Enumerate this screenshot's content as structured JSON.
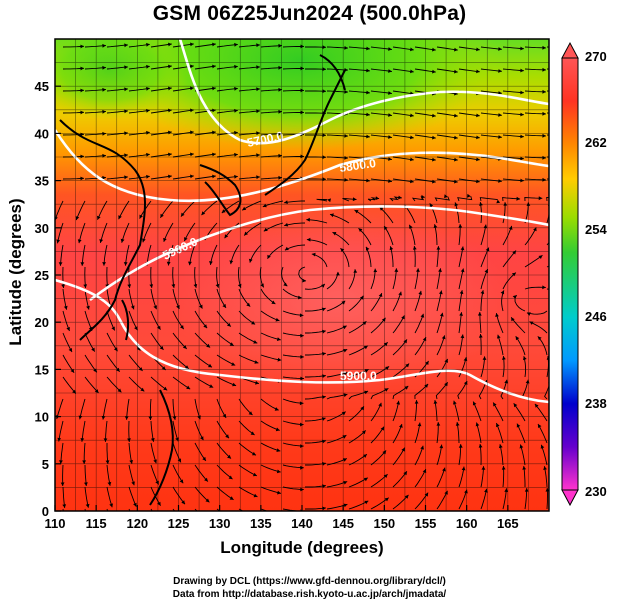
{
  "title": "GSM 06Z25Jun2024 (500.0hPa)",
  "xlabel": "Longitude (degrees)",
  "ylabel": "Latitude  (degrees)",
  "x_ticks": [
    "110",
    "115",
    "120",
    "125",
    "130",
    "135",
    "140",
    "145",
    "150",
    "155",
    "160",
    "165"
  ],
  "y_ticks": [
    "0",
    "5",
    "10",
    "15",
    "20",
    "25",
    "30",
    "35",
    "40",
    "45"
  ],
  "colorbar": {
    "min": 230,
    "max": 270,
    "labels": [
      "270",
      "262",
      "254",
      "246",
      "238",
      "230"
    ],
    "stops": [
      "#ff33cc",
      "#6600cc",
      "#0000cc",
      "#0099ff",
      "#00cccc",
      "#33cc33",
      "#99dd00",
      "#ffcc00",
      "#ff8800",
      "#ff3322",
      "#ff5555"
    ]
  },
  "contours": [
    {
      "label": "5700.0"
    },
    {
      "label": "5800.0"
    },
    {
      "label": "5900.0"
    },
    {
      "label": "5900.0"
    }
  ],
  "credits": {
    "line1": "Drawing by DCL (https://www.gfd-dennou.org/library/dcl/)",
    "line2": "Data from http://database.rish.kyoto-u.ac.jp/arch/jmadata/"
  },
  "chart_data": {
    "type": "heatmap",
    "title": "GSM 06Z25Jun2024 (500.0hPa)",
    "xlabel": "Longitude (degrees)",
    "ylabel": "Latitude  (degrees)",
    "xlim": [
      110,
      170
    ],
    "ylim": [
      0,
      50
    ],
    "color_variable_range": [
      230,
      270
    ],
    "colorbar_ticks": [
      230,
      238,
      246,
      254,
      262,
      270
    ],
    "contour_levels": [
      5700,
      5800,
      5900
    ],
    "grid": true,
    "overlay": "streamlines"
  }
}
